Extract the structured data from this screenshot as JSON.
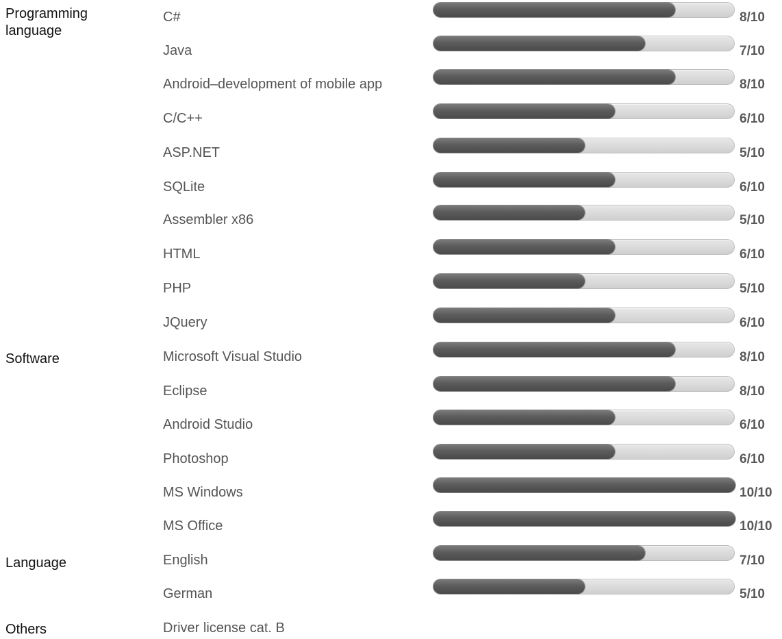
{
  "categories": [
    {
      "name": "Programming language"
    },
    {
      "name": "Software"
    },
    {
      "name": "Language"
    },
    {
      "name": "Others"
    }
  ],
  "skills": [
    {
      "label": "C#",
      "value": 8,
      "score": "8/10"
    },
    {
      "label": "Java",
      "value": 7,
      "score": "7/10"
    },
    {
      "label": "Android–development of mobile app",
      "value": 8,
      "score": "8/10"
    },
    {
      "label": "C/C++",
      "value": 6,
      "score": "6/10"
    },
    {
      "label": "ASP.NET",
      "value": 5,
      "score": "5/10"
    },
    {
      "label": "SQLite",
      "value": 6,
      "score": "6/10"
    },
    {
      "label": "Assembler x86",
      "value": 5,
      "score": "5/10"
    },
    {
      "label": "HTML",
      "value": 6,
      "score": "6/10"
    },
    {
      "label": "PHP",
      "value": 5,
      "score": "5/10"
    },
    {
      "label": "JQuery",
      "value": 6,
      "score": "6/10"
    },
    {
      "label": "Microsoft Visual Studio",
      "value": 8,
      "score": "8/10"
    },
    {
      "label": "Eclipse",
      "value": 8,
      "score": "8/10"
    },
    {
      "label": "Android Studio",
      "value": 6,
      "score": "6/10"
    },
    {
      "label": "Photoshop",
      "value": 6,
      "score": "6/10"
    },
    {
      "label": "MS Windows",
      "value": 10,
      "score": "10/10"
    },
    {
      "label": "MS Office",
      "value": 10,
      "score": "10/10"
    },
    {
      "label": "English",
      "value": 7,
      "score": "7/10"
    },
    {
      "label": "German",
      "value": 5,
      "score": "5/10"
    },
    {
      "label": "Driver license cat. B"
    }
  ],
  "scale_max": 10,
  "colors": {
    "track": "#d9d9d9",
    "fill": "#5c5c5c",
    "score_text": "#595959",
    "label_text": "#555555",
    "category_text": "#111111"
  }
}
